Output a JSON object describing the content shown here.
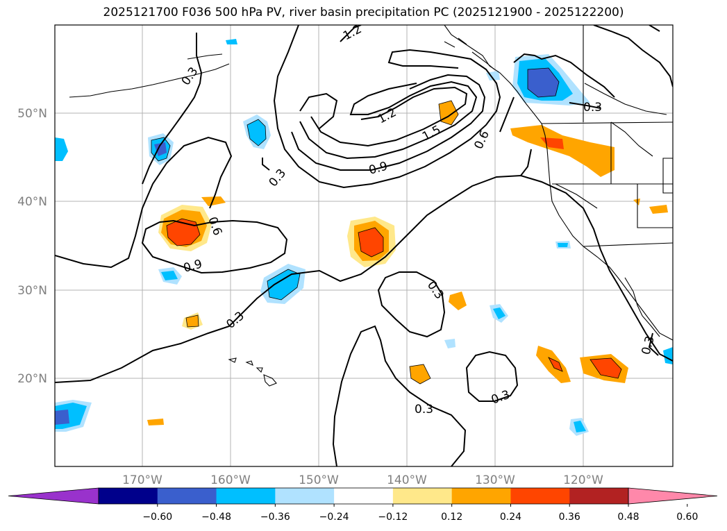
{
  "title": "2025121700 F036 500 hPa PV, river basin precipitation PC (2025121900 - 2025122200)",
  "lat_labels": [
    "50°N",
    "40°N",
    "30°N",
    "20°N"
  ],
  "lon_labels": [
    "170°W",
    "160°W",
    "150°W",
    "140°W",
    "130°W",
    "120°W"
  ],
  "contour_labels": [
    "1.2",
    "0.3",
    "1.2",
    "1.5",
    "0.6",
    "0.9",
    "0.3",
    "0.3",
    "0.6",
    "0.9",
    "0.3",
    "0.3",
    "0.3",
    "0.3",
    "0.3"
  ],
  "colorbar": {
    "ticks": [
      "−0.60",
      "−0.48",
      "−0.36",
      "−0.24",
      "−0.12",
      "0.12",
      "0.24",
      "0.36",
      "0.48",
      "0.60"
    ],
    "colors": [
      "#9932cc",
      "#00008b",
      "#3a5fcd",
      "#00bfff",
      "#b0e2ff",
      "#ffffff",
      "#ffe88a",
      "#ffa500",
      "#ff4500",
      "#b22222",
      "#ff88aa"
    ]
  }
}
